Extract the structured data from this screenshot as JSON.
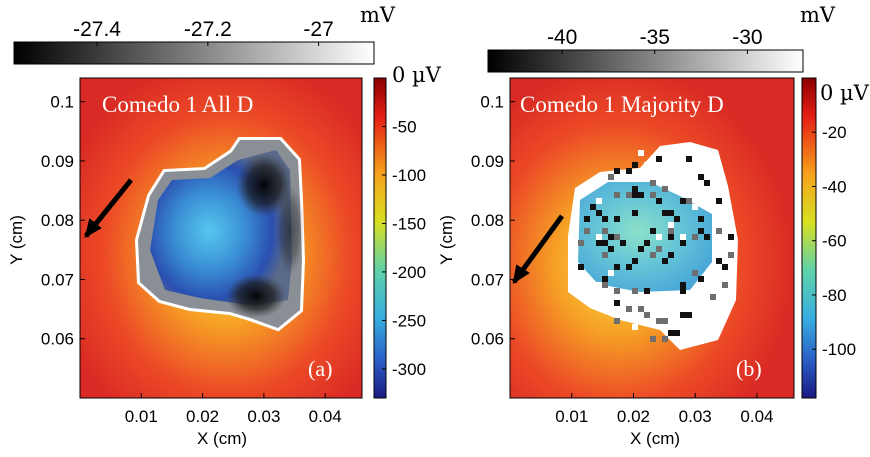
{
  "chart_data": [
    {
      "type": "heatmap",
      "title": "Comedo 1 All D",
      "panel_label": "(a)",
      "xlabel": "X (cm)",
      "ylabel": "Y (cm)",
      "xlim": [
        0.0,
        0.046
      ],
      "ylim": [
        0.05,
        0.104
      ],
      "x_ticks": [
        "0.01",
        "0.02",
        "0.03",
        "0.04"
      ],
      "y_ticks": [
        "0.1",
        "0.09",
        "0.08",
        "0.07",
        "0.06"
      ],
      "x_tick_values": [
        0.01,
        0.02,
        0.03,
        0.04
      ],
      "y_tick_values": [
        0.1,
        0.09,
        0.08,
        0.07,
        0.06
      ],
      "color_scale": {
        "unit": "0 µV",
        "tick_labels": [
          "-50",
          "-100",
          "-150",
          "-200",
          "-250",
          "-300"
        ],
        "tick_values": [
          -50,
          -100,
          -150,
          -200,
          -250,
          -300
        ],
        "range": [
          -330,
          0
        ],
        "colormap": "jet"
      },
      "overlay_scale": {
        "unit": "mV",
        "tick_labels": [
          "-27.4",
          "-27.2",
          "-27"
        ],
        "tick_values": [
          -27.4,
          -27.2,
          -27.0
        ],
        "range": [
          -27.55,
          -26.9
        ],
        "colormap": "gray"
      },
      "arrow": "points down-left toward the lesion edge"
    },
    {
      "type": "heatmap",
      "title": "Comedo 1 Majority D",
      "panel_label": "(b)",
      "xlabel": "X (cm)",
      "ylabel": "Y (cm)",
      "xlim": [
        0.0,
        0.046
      ],
      "ylim": [
        0.05,
        0.104
      ],
      "x_ticks": [
        "0.01",
        "0.02",
        "0.03",
        "0.04"
      ],
      "y_ticks": [
        "0.1",
        "0.09",
        "0.08",
        "0.07",
        "0.06"
      ],
      "x_tick_values": [
        0.01,
        0.02,
        0.03,
        0.04
      ],
      "y_tick_values": [
        0.1,
        0.09,
        0.08,
        0.07,
        0.06
      ],
      "color_scale": {
        "unit": "0 µV",
        "tick_labels": [
          "-20",
          "-40",
          "-60",
          "-80",
          "-100"
        ],
        "tick_values": [
          -20,
          -40,
          -60,
          -80,
          -100
        ],
        "range": [
          -118,
          0
        ],
        "colormap": "jet"
      },
      "overlay_scale": {
        "unit": "mV",
        "tick_labels": [
          "-40",
          "-35",
          "-30"
        ],
        "tick_values": [
          -40,
          -35,
          -30
        ],
        "range": [
          -44,
          -27
        ],
        "colormap": "gray"
      },
      "arrow": "points down-left toward the lesion edge"
    }
  ]
}
